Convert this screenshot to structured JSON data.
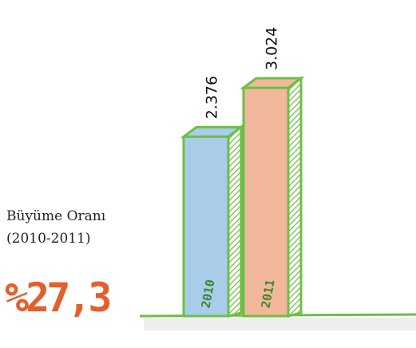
{
  "chart_data": {
    "type": "bar",
    "categories": [
      "2010",
      "2011"
    ],
    "values": [
      2376,
      3024
    ],
    "value_labels": [
      "2.376",
      "3.024"
    ],
    "colors": [
      "#a9cde9",
      "#f1b89c"
    ],
    "outline_color": "#6cbf45",
    "annotations": [
      "Büyüme Oranı",
      "(2010-2011)",
      "%27,3"
    ]
  }
}
